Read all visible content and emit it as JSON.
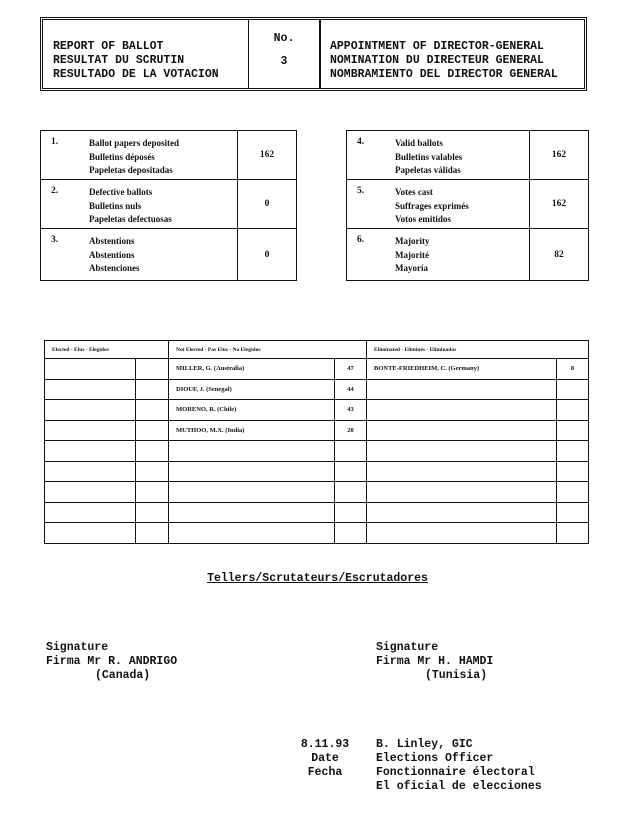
{
  "header": {
    "left": [
      "REPORT OF BALLOT",
      "RESULTAT DU SCRUTIN",
      "RESULTADO DE LA VOTACION"
    ],
    "no_label": "No.",
    "no_value": "3",
    "right": [
      "APPOINTMENT OF DIRECTOR-GENERAL",
      "NOMINATION DU DIRECTEUR GENERAL",
      "NOMBRAMIENTO DEL DIRECTOR GENERAL"
    ]
  },
  "stats_left": [
    {
      "num": "1.",
      "labels": [
        "Ballot papers deposited",
        "Bulletins déposés",
        "Papeletas depositadas"
      ],
      "value": "162"
    },
    {
      "num": "2.",
      "labels": [
        "Defective ballots",
        "Bulletins nuls",
        "Papeletas defectuosas"
      ],
      "value": "0"
    },
    {
      "num": "3.",
      "labels": [
        "Abstentions",
        "Abstentions",
        "Abstenciones"
      ],
      "value": "0"
    }
  ],
  "stats_right": [
    {
      "num": "4.",
      "labels": [
        "Valid ballots",
        "Bulletins valables",
        "Papeletas válidas"
      ],
      "value": "162"
    },
    {
      "num": "5.",
      "labels": [
        "Votes cast",
        "Suffrages exprimés",
        "Votos emitidos"
      ],
      "value": "162"
    },
    {
      "num": "6.",
      "labels": [
        "Majority",
        "Majorité",
        "Mayoría"
      ],
      "value": "82"
    }
  ],
  "results": {
    "headers": {
      "elected": "Elected - Elus - Elegidos",
      "not_elected": "Not Elected - Pas Elus - No Elegidos",
      "eliminated": "Eliminated - Eliminés - Eliminados"
    },
    "not_elected": [
      {
        "name": "MILLER, G. (Australia)",
        "votes": "47"
      },
      {
        "name": "DIOUF, J. (Senegal)",
        "votes": "44"
      },
      {
        "name": "MORENO, R. (Chile)",
        "votes": "43"
      },
      {
        "name": "MUTHOO, M.X. (India)",
        "votes": "20"
      }
    ],
    "eliminated": [
      {
        "name": "BONTE-FRIEDHEIM, C. (Germany)",
        "votes": "8"
      }
    ]
  },
  "tellers_title": "Tellers/Scrutateurs/Escrutadores",
  "signatures": [
    {
      "line1": "Signature",
      "line2": "Firma Mr R. ANDRIGO",
      "country": "(Canada)"
    },
    {
      "line1": "Signature",
      "line2": "Firma Mr H. HAMDI",
      "country": "(Tunisia)"
    }
  ],
  "date": {
    "value": "8.11.93",
    "label1": "Date",
    "label2": "Fecha"
  },
  "officer": [
    "B. Linley, GIC",
    "Elections Officer",
    "Fonctionnaire électoral",
    "El oficial de elecciones"
  ]
}
